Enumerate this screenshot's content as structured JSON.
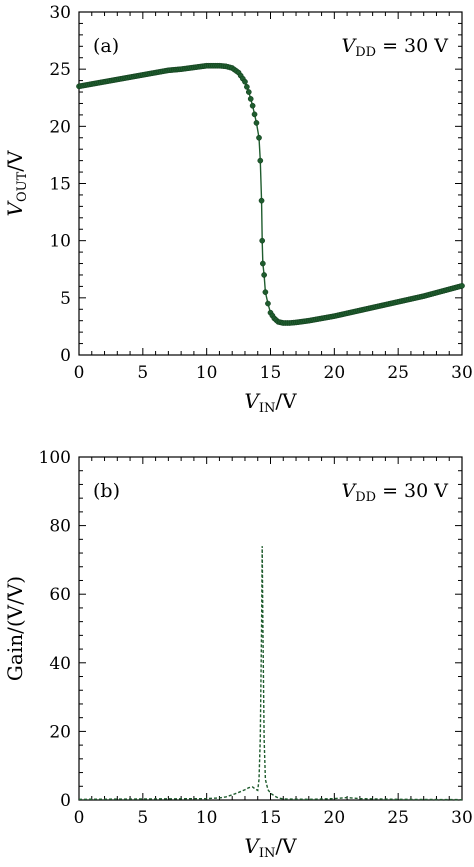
{
  "colors": {
    "series": "#1f5c2e",
    "axis": "#000000"
  },
  "chart_data": [
    {
      "type": "line",
      "panel_label": "(a)",
      "annotation": {
        "prefix": "V",
        "sub": "DD",
        "suffix": " = 30 V"
      },
      "xlabel": {
        "prefix": "V",
        "sub": "IN",
        "suffix": "/V"
      },
      "ylabel": {
        "prefix": "V",
        "sub": "OUT",
        "suffix": "/V"
      },
      "xlim": [
        0,
        30
      ],
      "ylim": [
        0,
        30
      ],
      "xticks": [
        0,
        5,
        10,
        15,
        20,
        25,
        30
      ],
      "yticks": [
        0,
        5,
        10,
        15,
        20,
        25,
        30
      ],
      "grid": false,
      "markers": true,
      "series": [
        {
          "x": [
            0,
            1,
            2,
            3,
            4,
            5,
            6,
            7,
            8,
            9,
            10,
            10.5,
            11,
            11.5,
            12,
            12.5,
            13,
            13.3,
            13.6,
            13.9,
            14.1,
            14.2,
            14.3,
            14.35,
            14.4,
            14.5,
            14.6,
            14.8,
            15,
            15.3,
            15.6,
            16,
            16.5,
            17,
            18,
            19,
            20,
            21,
            22,
            23,
            24,
            25,
            26,
            27,
            28,
            29,
            30
          ],
          "y": [
            23.5,
            23.7,
            23.9,
            24.1,
            24.3,
            24.5,
            24.7,
            24.9,
            25.0,
            25.15,
            25.3,
            25.3,
            25.3,
            25.25,
            25.1,
            24.7,
            23.9,
            23.0,
            21.8,
            20.3,
            19.0,
            17.0,
            13.5,
            10.0,
            8.0,
            7.0,
            5.5,
            4.5,
            3.7,
            3.2,
            2.9,
            2.8,
            2.8,
            2.85,
            3.0,
            3.2,
            3.4,
            3.65,
            3.9,
            4.15,
            4.4,
            4.65,
            4.9,
            5.15,
            5.45,
            5.75,
            6.05
          ]
        }
      ]
    },
    {
      "type": "line",
      "panel_label": "(b)",
      "annotation": {
        "prefix": "V",
        "sub": "DD",
        "suffix": " = 30 V"
      },
      "xlabel": {
        "prefix": "V",
        "sub": "IN",
        "suffix": "/V"
      },
      "ylabel": {
        "text": "Gain/(V/V)"
      },
      "xlim": [
        0,
        30
      ],
      "ylim": [
        0,
        100
      ],
      "xticks": [
        0,
        5,
        10,
        15,
        20,
        25,
        30
      ],
      "yticks": [
        0,
        20,
        40,
        60,
        80,
        100
      ],
      "grid": false,
      "markers": false,
      "dashed": true,
      "series": [
        {
          "x": [
            0,
            5,
            10,
            11,
            11.5,
            12,
            12.5,
            13,
            13.3,
            13.6,
            13.8,
            14.0,
            14.1,
            14.2,
            14.3,
            14.35,
            14.4,
            14.5,
            14.6,
            14.8,
            15,
            15.3,
            15.6,
            16,
            18,
            20,
            21,
            22,
            25,
            30
          ],
          "y": [
            0.2,
            0.3,
            0.4,
            0.6,
            0.9,
            1.5,
            2.2,
            3.0,
            3.6,
            3.8,
            3.2,
            2.8,
            6.0,
            18.0,
            50.0,
            74.0,
            52.0,
            18.0,
            6.0,
            3.0,
            2.0,
            1.2,
            0.6,
            0.3,
            0.2,
            0.4,
            0.7,
            0.4,
            0.2,
            0.1
          ]
        }
      ]
    }
  ]
}
